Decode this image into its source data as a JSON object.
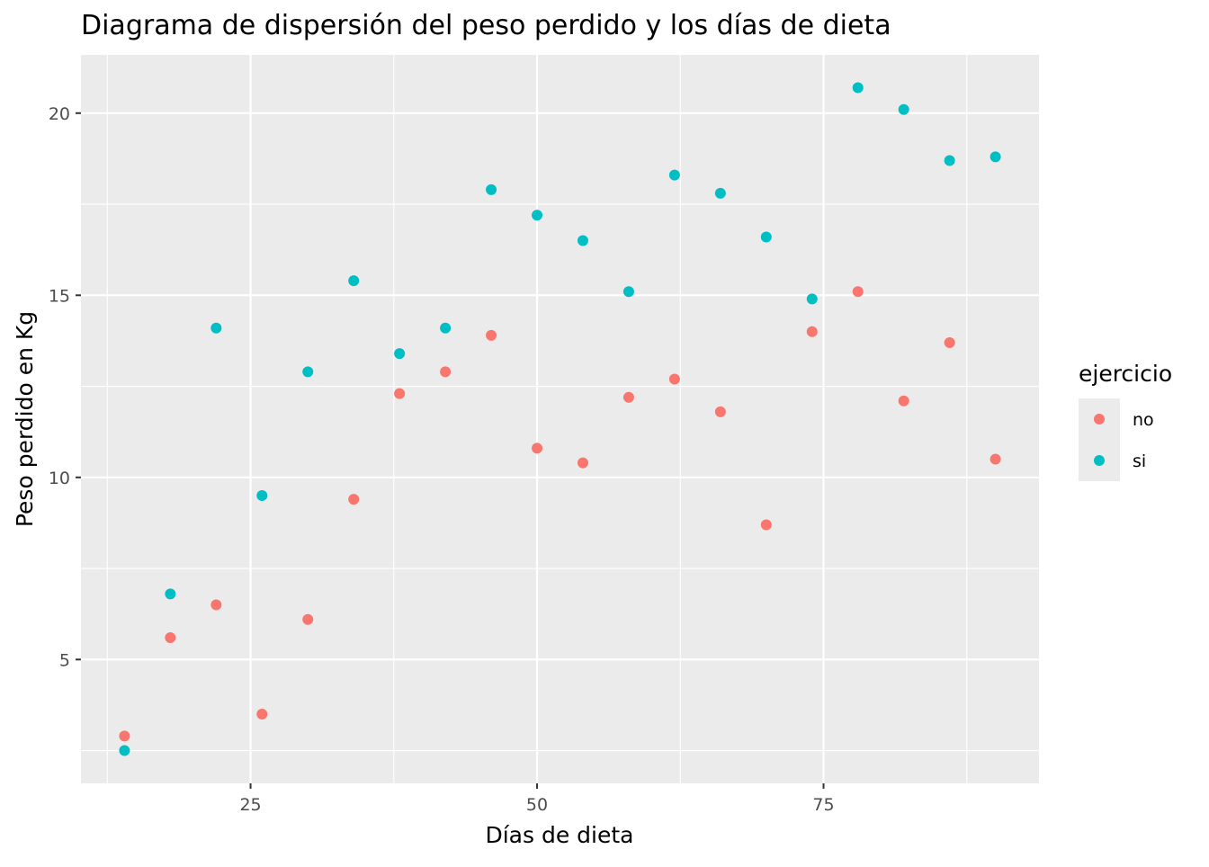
{
  "chart_data": {
    "type": "scatter",
    "title": "Diagrama de dispersión del peso perdido y los días de dieta",
    "xlabel": "Días de dieta",
    "ylabel": "Peso perdido en Kg",
    "xlim": [
      10.2,
      93.8
    ],
    "ylim": [
      1.6,
      21.6
    ],
    "x_ticks": [
      25,
      50,
      75
    ],
    "x_tick_labels": [
      "25",
      "50",
      "75"
    ],
    "x_minor_ticks": [
      12.5,
      37.5,
      62.5,
      87.5
    ],
    "y_ticks": [
      5,
      10,
      15,
      20
    ],
    "y_tick_labels": [
      "5",
      "10",
      "15",
      "20"
    ],
    "y_minor_ticks": [
      2.5,
      7.5,
      12.5,
      17.5
    ],
    "grid": true,
    "panel_color": "#ebebeb",
    "grid_color": "#ffffff",
    "legend": {
      "title": "ejercicio",
      "position": "right",
      "key_background": "#ebebeb"
    },
    "series": [
      {
        "name": "no",
        "color": "#f8766d",
        "points": [
          {
            "x": 14,
            "y": 2.9
          },
          {
            "x": 18,
            "y": 5.6
          },
          {
            "x": 22,
            "y": 6.5
          },
          {
            "x": 26,
            "y": 3.5
          },
          {
            "x": 30,
            "y": 6.1
          },
          {
            "x": 34,
            "y": 9.4
          },
          {
            "x": 38,
            "y": 12.3
          },
          {
            "x": 42,
            "y": 12.9
          },
          {
            "x": 46,
            "y": 13.9
          },
          {
            "x": 50,
            "y": 10.8
          },
          {
            "x": 54,
            "y": 10.4
          },
          {
            "x": 58,
            "y": 12.2
          },
          {
            "x": 62,
            "y": 12.7
          },
          {
            "x": 66,
            "y": 11.8
          },
          {
            "x": 70,
            "y": 8.7
          },
          {
            "x": 74,
            "y": 14.0
          },
          {
            "x": 78,
            "y": 15.1
          },
          {
            "x": 82,
            "y": 12.1
          },
          {
            "x": 86,
            "y": 13.7
          },
          {
            "x": 90,
            "y": 10.5
          }
        ]
      },
      {
        "name": "si",
        "color": "#00bfc4",
        "points": [
          {
            "x": 14,
            "y": 2.5
          },
          {
            "x": 18,
            "y": 6.8
          },
          {
            "x": 22,
            "y": 14.1
          },
          {
            "x": 26,
            "y": 9.5
          },
          {
            "x": 30,
            "y": 12.9
          },
          {
            "x": 34,
            "y": 15.4
          },
          {
            "x": 38,
            "y": 13.4
          },
          {
            "x": 42,
            "y": 14.1
          },
          {
            "x": 46,
            "y": 17.9
          },
          {
            "x": 50,
            "y": 17.2
          },
          {
            "x": 54,
            "y": 16.5
          },
          {
            "x": 58,
            "y": 15.1
          },
          {
            "x": 62,
            "y": 18.3
          },
          {
            "x": 66,
            "y": 17.8
          },
          {
            "x": 70,
            "y": 16.6
          },
          {
            "x": 74,
            "y": 14.9
          },
          {
            "x": 78,
            "y": 20.7
          },
          {
            "x": 82,
            "y": 20.1
          },
          {
            "x": 86,
            "y": 18.7
          },
          {
            "x": 90,
            "y": 18.8
          }
        ]
      }
    ]
  }
}
